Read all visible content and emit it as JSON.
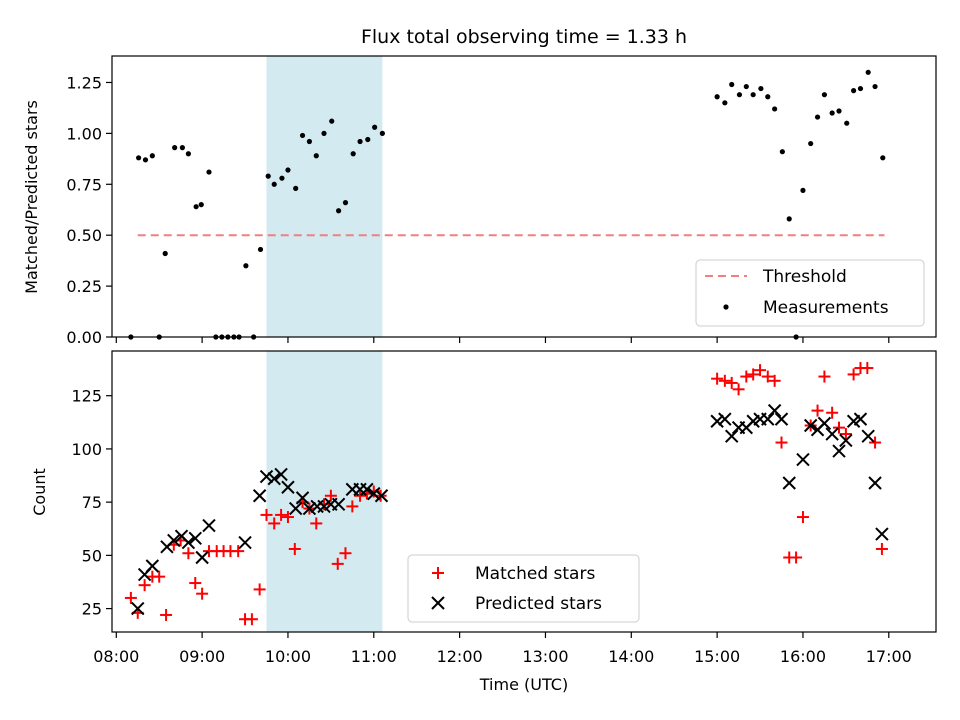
{
  "chart_data": [
    {
      "type": "scatter",
      "title": "Flux total observing time = 1.33 h",
      "ylabel": "Matched/Predicted stars",
      "xlabel": "",
      "xlim_hours": [
        7.95,
        17.55
      ],
      "ylim": [
        0,
        1.38
      ],
      "x_ticks": [
        "08:00",
        "09:00",
        "10:00",
        "11:00",
        "12:00",
        "13:00",
        "14:00",
        "15:00",
        "16:00",
        "17:00"
      ],
      "y_ticks": [
        "0.00",
        "0.25",
        "0.50",
        "0.75",
        "1.00",
        "1.25"
      ],
      "highlight_span_hours": [
        9.75,
        11.1
      ],
      "highlight_color": "#d3eaf1",
      "legend_position": "lower-right",
      "series": [
        {
          "name": "Threshold",
          "style": "dashed-line",
          "color": "#f08080",
          "x": [
            8.25,
            16.95
          ],
          "y": [
            0.5,
            0.5
          ]
        },
        {
          "name": "Measurements",
          "style": "dot",
          "color": "#000000",
          "points": [
            [
              8.17,
              0.0
            ],
            [
              8.26,
              0.88
            ],
            [
              8.34,
              0.87
            ],
            [
              8.42,
              0.89
            ],
            [
              8.5,
              0.0
            ],
            [
              8.57,
              0.41
            ],
            [
              8.68,
              0.93
            ],
            [
              8.77,
              0.93
            ],
            [
              8.84,
              0.9
            ],
            [
              8.93,
              0.64
            ],
            [
              8.99,
              0.65
            ],
            [
              9.08,
              0.81
            ],
            [
              9.16,
              0.0
            ],
            [
              9.23,
              0.0
            ],
            [
              9.3,
              0.0
            ],
            [
              9.37,
              0.0
            ],
            [
              9.43,
              0.0
            ],
            [
              9.51,
              0.35
            ],
            [
              9.6,
              0.0
            ],
            [
              9.68,
              0.43
            ],
            [
              9.77,
              0.79
            ],
            [
              9.84,
              0.75
            ],
            [
              9.93,
              0.78
            ],
            [
              10.0,
              0.82
            ],
            [
              10.09,
              0.73
            ],
            [
              10.17,
              0.99
            ],
            [
              10.25,
              0.96
            ],
            [
              10.33,
              0.89
            ],
            [
              10.42,
              1.0
            ],
            [
              10.51,
              1.06
            ],
            [
              10.59,
              0.62
            ],
            [
              10.67,
              0.66
            ],
            [
              10.76,
              0.9
            ],
            [
              10.84,
              0.96
            ],
            [
              10.93,
              0.97
            ],
            [
              11.01,
              1.03
            ],
            [
              11.1,
              1.0
            ],
            [
              15.0,
              1.18
            ],
            [
              15.09,
              1.15
            ],
            [
              15.17,
              1.24
            ],
            [
              15.26,
              1.19
            ],
            [
              15.34,
              1.23
            ],
            [
              15.42,
              1.19
            ],
            [
              15.51,
              1.22
            ],
            [
              15.59,
              1.18
            ],
            [
              15.67,
              1.12
            ],
            [
              15.76,
              0.91
            ],
            [
              15.84,
              0.58
            ],
            [
              15.92,
              0.0
            ],
            [
              16.0,
              0.72
            ],
            [
              16.09,
              0.95
            ],
            [
              16.17,
              1.08
            ],
            [
              16.25,
              1.19
            ],
            [
              16.34,
              1.1
            ],
            [
              16.42,
              1.11
            ],
            [
              16.51,
              1.05
            ],
            [
              16.59,
              1.21
            ],
            [
              16.67,
              1.22
            ],
            [
              16.76,
              1.3
            ],
            [
              16.84,
              1.23
            ],
            [
              16.93,
              0.88
            ]
          ]
        }
      ]
    },
    {
      "type": "scatter",
      "title": "",
      "ylabel": "Count",
      "xlabel": "Time (UTC)",
      "xlim_hours": [
        7.95,
        17.55
      ],
      "ylim": [
        14,
        146
      ],
      "x_ticks": [
        "08:00",
        "09:00",
        "10:00",
        "11:00",
        "12:00",
        "13:00",
        "14:00",
        "15:00",
        "16:00",
        "17:00"
      ],
      "y_ticks": [
        "25",
        "50",
        "75",
        "100",
        "125"
      ],
      "highlight_span_hours": [
        9.75,
        11.1
      ],
      "highlight_color": "#d3eaf1",
      "legend_position": "bottom-center",
      "series": [
        {
          "name": "Matched stars",
          "style": "plus",
          "color": "#ff0000",
          "points": [
            [
              8.17,
              30
            ],
            [
              8.25,
              23
            ],
            [
              8.33,
              36
            ],
            [
              8.42,
              40
            ],
            [
              8.5,
              40
            ],
            [
              8.58,
              22
            ],
            [
              8.67,
              55
            ],
            [
              8.75,
              57
            ],
            [
              8.84,
              51
            ],
            [
              8.92,
              37
            ],
            [
              9.0,
              32
            ],
            [
              9.08,
              52
            ],
            [
              9.17,
              52
            ],
            [
              9.25,
              52
            ],
            [
              9.33,
              52
            ],
            [
              9.42,
              52
            ],
            [
              9.5,
              20
            ],
            [
              9.58,
              20
            ],
            [
              9.67,
              34
            ],
            [
              9.75,
              69
            ],
            [
              9.84,
              65
            ],
            [
              9.92,
              69
            ],
            [
              10.0,
              68
            ],
            [
              10.08,
              53
            ],
            [
              10.17,
              75
            ],
            [
              10.25,
              72
            ],
            [
              10.33,
              65
            ],
            [
              10.42,
              74
            ],
            [
              10.5,
              78
            ],
            [
              10.58,
              46
            ],
            [
              10.67,
              51
            ],
            [
              10.75,
              73
            ],
            [
              10.84,
              78
            ],
            [
              10.92,
              79
            ],
            [
              11.0,
              80
            ],
            [
              11.08,
              78
            ],
            [
              15.0,
              133
            ],
            [
              15.09,
              132
            ],
            [
              15.17,
              131
            ],
            [
              15.25,
              128
            ],
            [
              15.34,
              134
            ],
            [
              15.42,
              135
            ],
            [
              15.5,
              137
            ],
            [
              15.59,
              134
            ],
            [
              15.67,
              132
            ],
            [
              15.75,
              103
            ],
            [
              15.84,
              49
            ],
            [
              15.92,
              49
            ],
            [
              16.0,
              68
            ],
            [
              16.09,
              111
            ],
            [
              16.17,
              118
            ],
            [
              16.25,
              134
            ],
            [
              16.34,
              117
            ],
            [
              16.42,
              110
            ],
            [
              16.5,
              107
            ],
            [
              16.59,
              135
            ],
            [
              16.67,
              138
            ],
            [
              16.75,
              138
            ],
            [
              16.84,
              103
            ],
            [
              16.92,
              53
            ]
          ]
        },
        {
          "name": "Predicted stars",
          "style": "x",
          "color": "#000000",
          "points": [
            [
              8.25,
              25
            ],
            [
              8.33,
              41
            ],
            [
              8.42,
              45
            ],
            [
              8.59,
              54
            ],
            [
              8.67,
              57
            ],
            [
              8.76,
              59
            ],
            [
              8.84,
              56
            ],
            [
              8.92,
              58
            ],
            [
              9.0,
              49
            ],
            [
              9.08,
              64
            ],
            [
              9.5,
              56
            ],
            [
              9.67,
              78
            ],
            [
              9.75,
              87
            ],
            [
              9.84,
              86
            ],
            [
              9.92,
              88
            ],
            [
              10.0,
              82
            ],
            [
              10.09,
              72
            ],
            [
              10.17,
              77
            ],
            [
              10.25,
              72
            ],
            [
              10.34,
              73
            ],
            [
              10.42,
              73
            ],
            [
              10.5,
              74
            ],
            [
              10.59,
              74
            ],
            [
              10.75,
              81
            ],
            [
              10.84,
              81
            ],
            [
              10.92,
              81
            ],
            [
              11.0,
              79
            ],
            [
              11.09,
              78
            ],
            [
              15.0,
              113
            ],
            [
              15.09,
              114
            ],
            [
              15.17,
              106
            ],
            [
              15.25,
              110
            ],
            [
              15.34,
              110
            ],
            [
              15.42,
              113
            ],
            [
              15.5,
              114
            ],
            [
              15.59,
              114
            ],
            [
              15.67,
              118
            ],
            [
              15.75,
              114
            ],
            [
              15.84,
              84
            ],
            [
              16.0,
              95
            ],
            [
              16.09,
              111
            ],
            [
              16.17,
              109
            ],
            [
              16.25,
              112
            ],
            [
              16.34,
              107
            ],
            [
              16.42,
              99
            ],
            [
              16.5,
              104
            ],
            [
              16.59,
              113
            ],
            [
              16.67,
              114
            ],
            [
              16.76,
              106
            ],
            [
              16.84,
              84
            ],
            [
              16.92,
              60
            ]
          ]
        }
      ]
    }
  ]
}
